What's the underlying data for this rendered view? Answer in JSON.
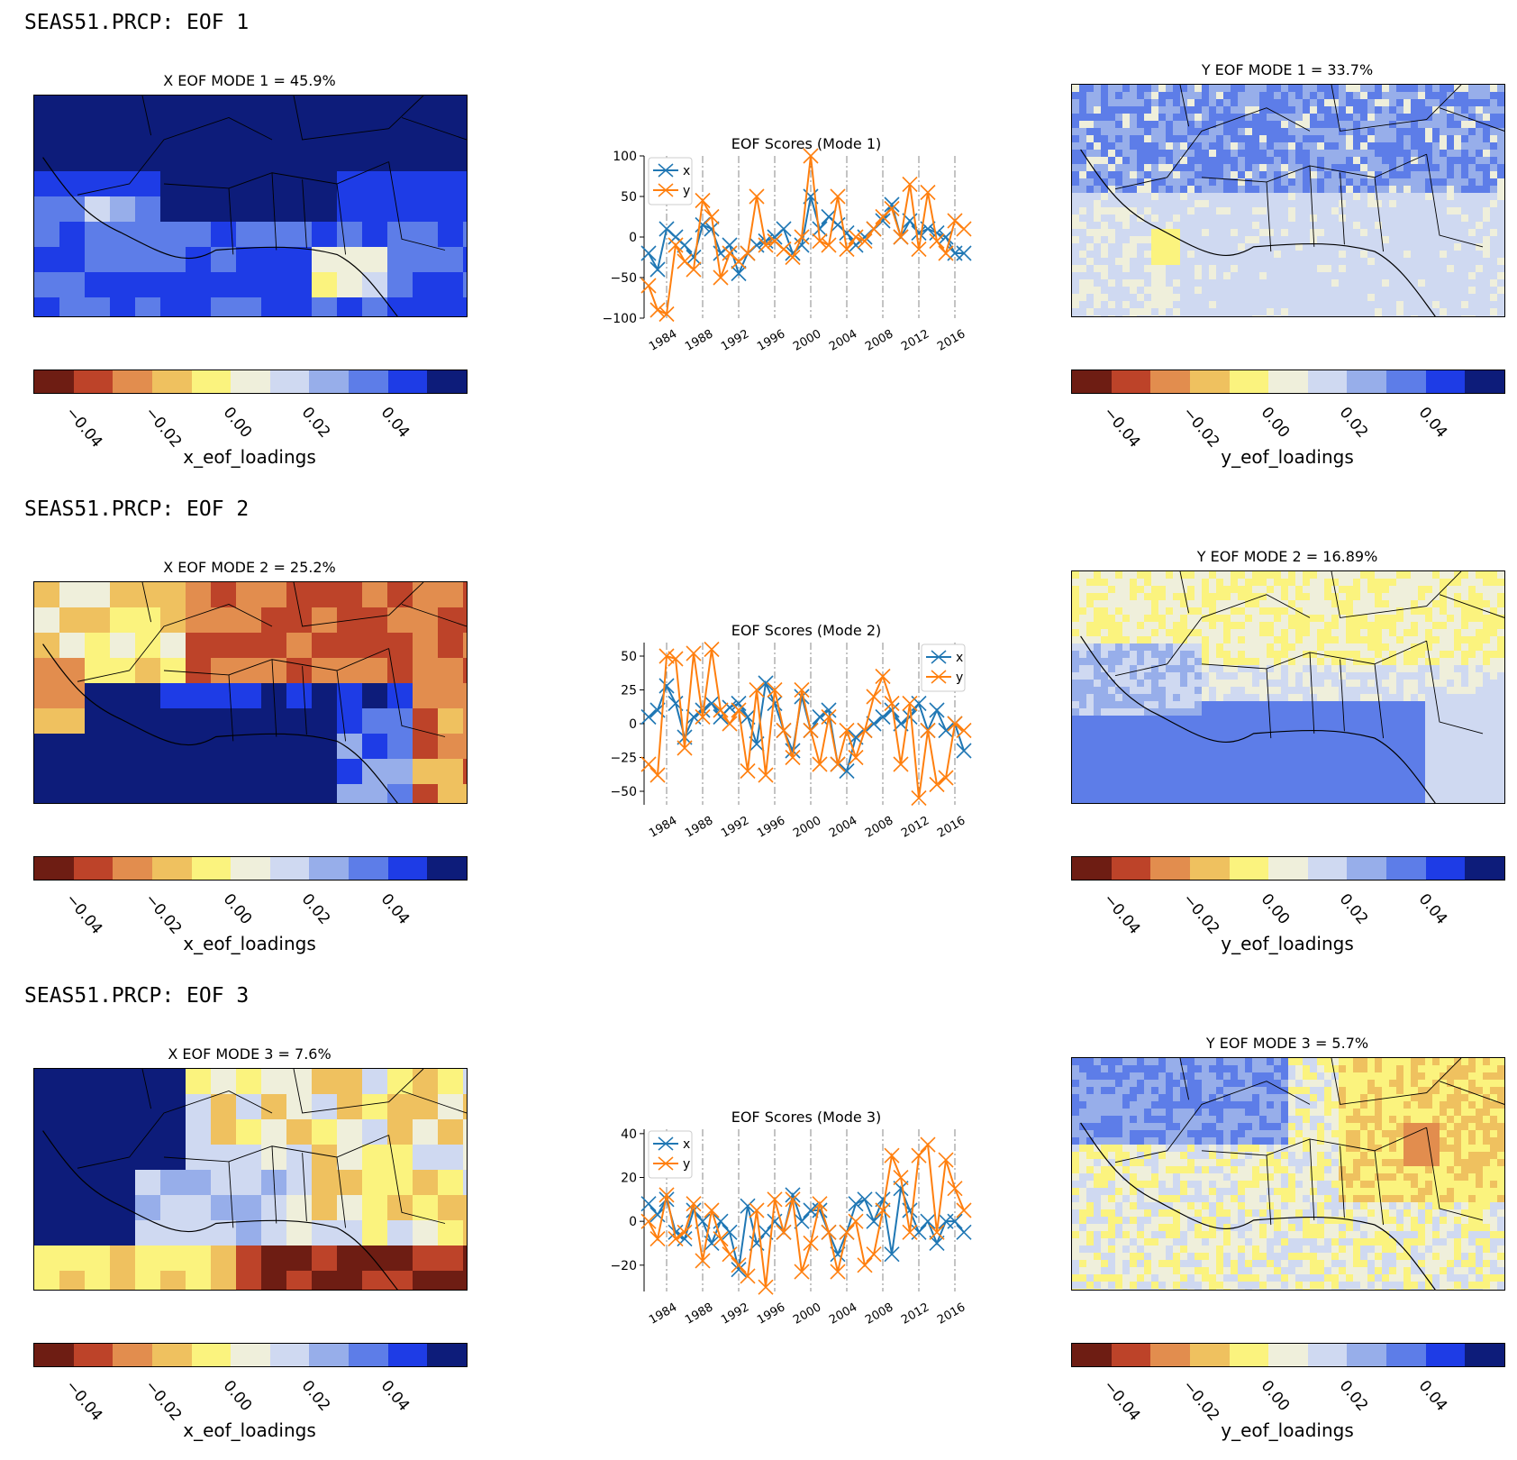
{
  "colorbar": {
    "colors": [
      "#6e1d13",
      "#bd4329",
      "#e28d4e",
      "#efc15f",
      "#fbf37e",
      "#efefdb",
      "#cfd9f1",
      "#97aeea",
      "#5d7de8",
      "#1e3ce6",
      "#0d1c7a"
    ],
    "ticks": [
      "−0.04",
      "−0.02",
      "0.00",
      "0.02",
      "0.04"
    ]
  },
  "panels": [
    {
      "title": "SEAS51.PRCP: EOF 1",
      "x_map": {
        "title": "X EOF MODE 1 = 45.9%",
        "cbar_label": "x_eof_loadings",
        "style": "x1"
      },
      "y_map": {
        "title": "Y EOF MODE 1 = 33.7%",
        "cbar_label": "y_eof_loadings",
        "style": "y1"
      }
    },
    {
      "title": "SEAS51.PRCP: EOF 2",
      "x_map": {
        "title": "X EOF MODE 2 = 25.2%",
        "cbar_label": "x_eof_loadings",
        "style": "x2"
      },
      "y_map": {
        "title": "Y EOF MODE 2 = 16.89%",
        "cbar_label": "y_eof_loadings",
        "style": "y2"
      }
    },
    {
      "title": "SEAS51.PRCP: EOF 3",
      "x_map": {
        "title": "X EOF MODE 3 = 7.6%",
        "cbar_label": "x_eof_loadings",
        "style": "x3"
      },
      "y_map": {
        "title": "Y EOF MODE 3 = 5.7%",
        "cbar_label": "y_eof_loadings",
        "style": "y3"
      }
    }
  ],
  "chart_data": [
    {
      "type": "line",
      "title": "EOF Scores (Mode 1)",
      "x": [
        1982,
        1983,
        1984,
        1985,
        1986,
        1987,
        1988,
        1989,
        1990,
        1991,
        1992,
        1993,
        1994,
        1995,
        1996,
        1997,
        1998,
        1999,
        2000,
        2001,
        2002,
        2003,
        2004,
        2005,
        2006,
        2007,
        2008,
        2009,
        2010,
        2011,
        2012,
        2013,
        2014,
        2015,
        2016,
        2017
      ],
      "x_ticks": [
        "1984",
        "1988",
        "1992",
        "1996",
        "2000",
        "2004",
        "2008",
        "2012",
        "2016"
      ],
      "ylim": [
        -100,
        100
      ],
      "y_ticks": [
        "100",
        "50",
        "0",
        "−50",
        "−100"
      ],
      "legend": "top-left",
      "series": [
        {
          "name": "x",
          "color": "#1f77b4",
          "values": [
            -20,
            -40,
            10,
            0,
            -10,
            -25,
            15,
            10,
            -20,
            -10,
            -45,
            -20,
            -10,
            -5,
            0,
            10,
            -20,
            -10,
            50,
            10,
            25,
            15,
            5,
            -10,
            0,
            10,
            20,
            40,
            0,
            20,
            5,
            10,
            5,
            0,
            -20,
            -20
          ]
        },
        {
          "name": "y",
          "color": "#ff7f0e",
          "values": [
            -60,
            -90,
            -95,
            -10,
            -30,
            -40,
            45,
            25,
            -50,
            -20,
            -30,
            -20,
            50,
            -10,
            -5,
            -15,
            -25,
            0,
            100,
            -5,
            -10,
            50,
            -15,
            0,
            -5,
            10,
            25,
            35,
            0,
            65,
            -15,
            55,
            -5,
            -20,
            20,
            10
          ]
        }
      ]
    },
    {
      "type": "line",
      "title": "EOF Scores (Mode 2)",
      "x": [
        1982,
        1983,
        1984,
        1985,
        1986,
        1987,
        1988,
        1989,
        1990,
        1991,
        1992,
        1993,
        1994,
        1995,
        1996,
        1997,
        1998,
        1999,
        2000,
        2001,
        2002,
        2003,
        2004,
        2005,
        2006,
        2007,
        2008,
        2009,
        2010,
        2011,
        2012,
        2013,
        2014,
        2015,
        2016,
        2017
      ],
      "x_ticks": [
        "1984",
        "1988",
        "1992",
        "1996",
        "2000",
        "2004",
        "2008",
        "2012",
        "2016"
      ],
      "ylim": [
        -60,
        60
      ],
      "y_ticks": [
        "50",
        "25",
        "0",
        "−25",
        "−50"
      ],
      "legend": "top-right",
      "series": [
        {
          "name": "x",
          "color": "#1f77b4",
          "values": [
            5,
            10,
            28,
            15,
            -10,
            5,
            10,
            15,
            5,
            12,
            15,
            5,
            -15,
            30,
            15,
            -5,
            -20,
            20,
            -5,
            5,
            10,
            -30,
            -35,
            -10,
            -5,
            0,
            5,
            10,
            0,
            5,
            15,
            -5,
            10,
            -5,
            0,
            -20
          ]
        },
        {
          "name": "y",
          "color": "#ff7f0e",
          "values": [
            -30,
            -38,
            50,
            48,
            -18,
            52,
            5,
            55,
            10,
            0,
            10,
            -35,
            25,
            -38,
            25,
            -5,
            -25,
            25,
            -5,
            -30,
            5,
            -30,
            -5,
            -25,
            -5,
            20,
            35,
            15,
            -30,
            15,
            -55,
            -5,
            -45,
            -40,
            0,
            -5
          ]
        }
      ]
    },
    {
      "type": "line",
      "title": "EOF Scores (Mode 3)",
      "x": [
        1982,
        1983,
        1984,
        1985,
        1986,
        1987,
        1988,
        1989,
        1990,
        1991,
        1992,
        1993,
        1994,
        1995,
        1996,
        1997,
        1998,
        1999,
        2000,
        2001,
        2002,
        2003,
        2004,
        2005,
        2006,
        2007,
        2008,
        2009,
        2010,
        2011,
        2012,
        2013,
        2014,
        2015,
        2016,
        2017
      ],
      "x_ticks": [
        "1984",
        "1988",
        "1992",
        "1996",
        "2000",
        "2004",
        "2008",
        "2012",
        "2016"
      ],
      "ylim": [
        -32,
        42
      ],
      "y_ticks": [
        "40",
        "20",
        "0",
        "−20"
      ],
      "legend": "top-left",
      "series": [
        {
          "name": "x",
          "color": "#1f77b4",
          "values": [
            8,
            3,
            10,
            -5,
            -8,
            5,
            0,
            -10,
            0,
            -5,
            -22,
            7,
            -10,
            -5,
            0,
            -5,
            12,
            0,
            5,
            5,
            -5,
            -15,
            -5,
            8,
            10,
            0,
            10,
            -15,
            15,
            5,
            -5,
            0,
            -10,
            0,
            0,
            -5
          ]
        },
        {
          "name": "y",
          "color": "#ff7f0e",
          "values": [
            0,
            -8,
            12,
            -8,
            -5,
            8,
            -18,
            5,
            -8,
            -15,
            -20,
            -25,
            5,
            -30,
            10,
            -5,
            10,
            -23,
            -10,
            8,
            -5,
            -23,
            -5,
            0,
            -20,
            -15,
            5,
            30,
            20,
            -5,
            30,
            35,
            -5,
            28,
            15,
            5
          ]
        }
      ]
    }
  ]
}
